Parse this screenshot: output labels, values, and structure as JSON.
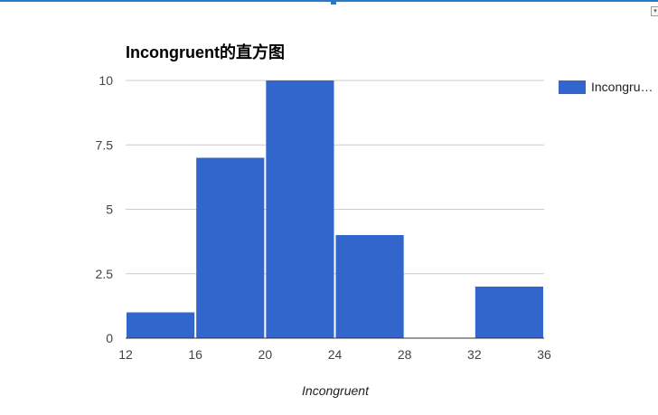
{
  "chart_data": {
    "type": "bar",
    "title": "Incongruent的直方图",
    "xlabel": "Incongruent",
    "ylabel": "",
    "bins": [
      {
        "start": 12,
        "end": 16,
        "value": 1
      },
      {
        "start": 16,
        "end": 20,
        "value": 7
      },
      {
        "start": 20,
        "end": 24,
        "value": 10
      },
      {
        "start": 24,
        "end": 28,
        "value": 4
      },
      {
        "start": 28,
        "end": 32,
        "value": 0
      },
      {
        "start": 32,
        "end": 36,
        "value": 2
      }
    ],
    "x_ticks": [
      "12",
      "16",
      "20",
      "24",
      "28",
      "32",
      "36"
    ],
    "y_ticks": [
      "0",
      "2.5",
      "5",
      "7.5",
      "10"
    ],
    "xlim": [
      12,
      36
    ],
    "ylim": [
      0,
      10
    ],
    "grid": true,
    "legend": {
      "position": "right",
      "entries": [
        "Incongru…"
      ]
    },
    "color": "#3366cc"
  }
}
